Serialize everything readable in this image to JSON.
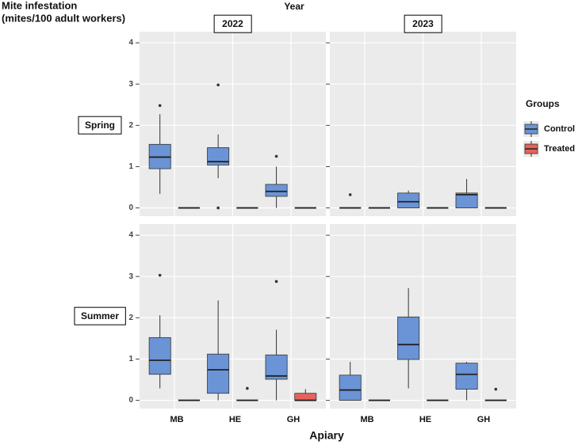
{
  "chart_data": {
    "type": "box",
    "title": "Year",
    "y_label": [
      "Mite infestation",
      "(mites/100 adult workers)"
    ],
    "x_label": "Apiary",
    "rows": [
      "Spring",
      "Summer"
    ],
    "columns": [
      "2022",
      "2023"
    ],
    "categories": [
      "MB",
      "HE",
      "GH"
    ],
    "legend_title": "Groups",
    "legend": "right",
    "grid": true,
    "ylim": [
      -0.2,
      4.27
    ],
    "yticks": [
      0,
      1,
      2,
      3,
      4
    ],
    "series": [
      {
        "name": "Control",
        "color": "#6b94d6",
        "values": [
          [
            [
              {
                "min": 0.34,
                "q1": 0.95,
                "median": 1.23,
                "q3": 1.54,
                "max": 2.27,
                "outliers": [
                  2.48
                ]
              },
              {
                "min": 0.72,
                "q1": 1.04,
                "median": 1.12,
                "q3": 1.46,
                "max": 1.78,
                "outliers": [
                  2.98,
                  0
                ]
              },
              {
                "min": 0,
                "q1": 0.28,
                "median": 0.4,
                "q3": 0.57,
                "max": 1.0,
                "outliers": [
                  1.25
                ]
              }
            ],
            [
              {
                "min": 0,
                "q1": 0,
                "median": 0,
                "q3": 0,
                "max": 0,
                "outliers": [
                  0.32
                ]
              },
              {
                "min": 0,
                "q1": 0,
                "median": 0.15,
                "q3": 0.36,
                "max": 0.42,
                "outliers": []
              },
              {
                "min": 0,
                "q1": 0,
                "median": 0.32,
                "q3": 0.36,
                "max": 0.7,
                "outliers": []
              }
            ]
          ],
          [
            [
              {
                "min": 0.29,
                "q1": 0.63,
                "median": 0.97,
                "q3": 1.52,
                "max": 2.06,
                "outliers": [
                  3.03
                ]
              },
              {
                "min": 0,
                "q1": 0.17,
                "median": 0.74,
                "q3": 1.12,
                "max": 2.42,
                "outliers": []
              },
              {
                "min": 0,
                "q1": 0.51,
                "median": 0.59,
                "q3": 1.1,
                "max": 1.71,
                "outliers": [
                  2.88
                ]
              }
            ],
            [
              {
                "min": 0,
                "q1": 0,
                "median": 0.25,
                "q3": 0.61,
                "max": 0.93,
                "outliers": []
              },
              {
                "min": 0.29,
                "q1": 0.99,
                "median": 1.35,
                "q3": 2.02,
                "max": 2.72,
                "outliers": []
              },
              {
                "min": 0,
                "q1": 0.27,
                "median": 0.63,
                "q3": 0.9,
                "max": 0.93,
                "outliers": []
              }
            ]
          ]
        ]
      },
      {
        "name": "Treated",
        "color": "#e8625c",
        "values": [
          [
            [
              {
                "min": 0,
                "q1": 0,
                "median": 0,
                "q3": 0,
                "max": 0,
                "outliers": []
              },
              {
                "min": 0,
                "q1": 0,
                "median": 0,
                "q3": 0,
                "max": 0,
                "outliers": []
              },
              {
                "min": 0,
                "q1": 0,
                "median": 0,
                "q3": 0,
                "max": 0,
                "outliers": []
              }
            ],
            [
              {
                "min": 0,
                "q1": 0,
                "median": 0,
                "q3": 0,
                "max": 0,
                "outliers": []
              },
              {
                "min": 0,
                "q1": 0,
                "median": 0,
                "q3": 0,
                "max": 0,
                "outliers": []
              },
              {
                "min": 0,
                "q1": 0,
                "median": 0,
                "q3": 0,
                "max": 0,
                "outliers": []
              }
            ]
          ],
          [
            [
              {
                "min": 0,
                "q1": 0,
                "median": 0,
                "q3": 0,
                "max": 0,
                "outliers": []
              },
              {
                "min": 0,
                "q1": 0,
                "median": 0,
                "q3": 0,
                "max": 0,
                "outliers": [
                  0.29
                ]
              },
              {
                "min": 0,
                "q1": 0,
                "median": 0,
                "q3": 0.17,
                "max": 0.27,
                "outliers": []
              }
            ],
            [
              {
                "min": 0,
                "q1": 0,
                "median": 0,
                "q3": 0,
                "max": 0,
                "outliers": []
              },
              {
                "min": 0,
                "q1": 0,
                "median": 0,
                "q3": 0,
                "max": 0,
                "outliers": []
              },
              {
                "min": 0,
                "q1": 0,
                "median": 0,
                "q3": 0,
                "max": 0,
                "outliers": [
                  0.27
                ]
              }
            ]
          ]
        ]
      }
    ]
  }
}
